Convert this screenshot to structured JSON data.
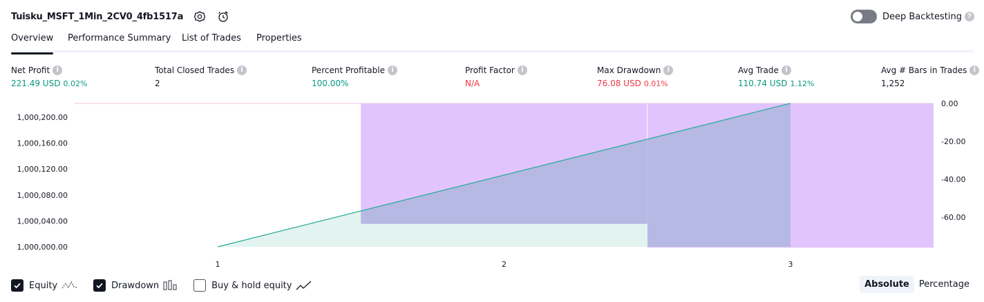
{
  "header": {
    "title": "Tuisku_MSFT_1Min_2CV0_4fb1517a",
    "settings_icon": "gear-icon",
    "alert_icon": "alarm-clock-icon"
  },
  "deep_backtesting": {
    "label": "Deep Backtesting",
    "enabled": false,
    "help": "?"
  },
  "tabs": [
    {
      "label": "Overview",
      "active": true
    },
    {
      "label": "Performance Summary"
    },
    {
      "label": "List of Trades"
    },
    {
      "label": "Properties"
    }
  ],
  "metrics": {
    "net_profit": {
      "label": "Net Profit",
      "value": "221.49 USD",
      "pct": "0.02%"
    },
    "total_closed_trades": {
      "label": "Total Closed Trades",
      "value": "2"
    },
    "percent_profitable": {
      "label": "Percent Profitable",
      "value": "100.00%"
    },
    "profit_factor": {
      "label": "Profit Factor",
      "value": "N/A"
    },
    "max_drawdown": {
      "label": "Max Drawdown",
      "value": "76.08 USD",
      "pct": "0.01%"
    },
    "avg_trade": {
      "label": "Avg Trade",
      "value": "110.74 USD",
      "pct": "1.12%"
    },
    "avg_bars": {
      "label": "Avg # Bars in Trades",
      "value": "1,252"
    }
  },
  "chart_data": {
    "type": "area",
    "x_ticks": [
      "1",
      "2",
      "3"
    ],
    "y_left_ticks": [
      "1,000,200.00",
      "1,000,160.00",
      "1,000,120.00",
      "1,000,080.00",
      "1,000,040.00",
      "1,000,000.00"
    ],
    "y_right_ticks": [
      "0.00",
      "-20.00",
      "-40.00",
      "-60.00"
    ],
    "equity": {
      "x": [
        1,
        3
      ],
      "y": [
        1000000.0,
        1000221.49
      ]
    },
    "drawdown_bars": [
      {
        "x_from": 1.5,
        "x_to": 2.5,
        "value": -63.5
      },
      {
        "x_from": 2.5,
        "x_to": 3.5,
        "value": -76.08
      }
    ],
    "colors": {
      "equity_line": "#22ab94",
      "equity_fill": "#e3f4f0",
      "drawdown": "#e1c4fc",
      "overlap": "#b6b9e4"
    }
  },
  "legend": {
    "equity": {
      "label": "Equity",
      "checked": true
    },
    "drawdown": {
      "label": "Drawdown",
      "checked": true
    },
    "buy_hold": {
      "label": "Buy & hold equity",
      "checked": false
    }
  },
  "modes": {
    "absolute": "Absolute",
    "percentage": "Percentage",
    "active": "absolute"
  }
}
